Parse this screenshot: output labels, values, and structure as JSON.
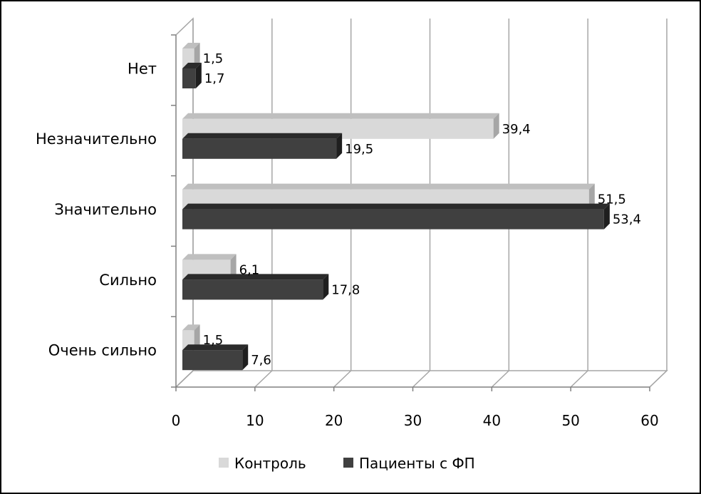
{
  "chart_data": {
    "type": "bar",
    "orientation": "horizontal",
    "style": "3d",
    "categories": [
      "Нет",
      "Незначительно",
      "Значительно",
      "Сильно",
      "Очень сильно"
    ],
    "series": [
      {
        "name": "Контроль",
        "values": [
          1.5,
          39.4,
          51.5,
          6.1,
          1.5
        ],
        "labels": [
          "1,5",
          "39,4",
          "51,5",
          "6,1",
          "1,5"
        ],
        "color": "#d9d9d9"
      },
      {
        "name": "Пациенты с ФП",
        "values": [
          1.7,
          19.5,
          53.4,
          17.8,
          7.6
        ],
        "labels": [
          "1,7",
          "19,5",
          "53,4",
          "17,8",
          "7,6"
        ],
        "color": "#404040"
      }
    ],
    "xlim": [
      0,
      60
    ],
    "xticks": [
      "0",
      "10",
      "20",
      "30",
      "40",
      "50",
      "60"
    ],
    "grid": true,
    "legend_position": "bottom",
    "title": "",
    "xlabel": "",
    "ylabel": ""
  }
}
